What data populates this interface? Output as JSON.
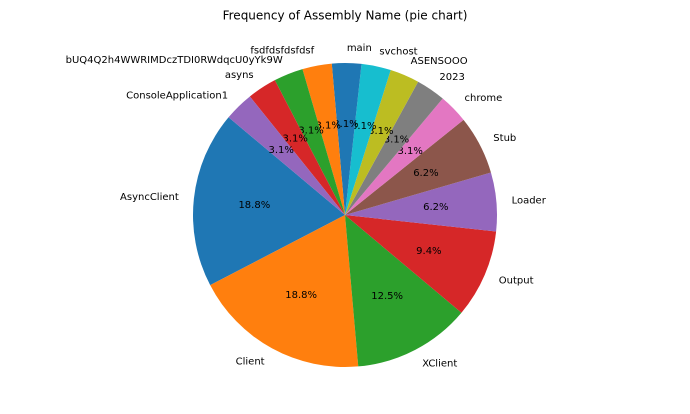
{
  "chart_data": {
    "type": "pie",
    "title": "Frequency of Assembly Name (pie chart)",
    "categories": [
      "AsyncClient",
      "Client",
      "XClient",
      "Output",
      "Loader",
      "Stub",
      "chrome",
      "2023",
      "ASENSOOO",
      "svchost",
      "main",
      "fsdfdsfdsfdsf",
      "bUQ4Q2h4WWRIMDczTDI0RWdqcU0yYk9W",
      "asyns",
      "ConsoleApplication1"
    ],
    "values": [
      18.75,
      18.75,
      12.5,
      9.375,
      6.25,
      6.25,
      3.125,
      3.125,
      3.125,
      3.125,
      3.125,
      3.125,
      3.125,
      3.125,
      3.125
    ],
    "value_labels": [
      "18.8%",
      "18.8%",
      "12.5%",
      "9.4%",
      "6.2%",
      "6.2%",
      "3.1%",
      "3.1%",
      "3.1%",
      "3.1%",
      "3.1%",
      "3.1%",
      "3.1%",
      "3.1%",
      "3.1%"
    ],
    "colors": [
      "#1f77b4",
      "#ff7f0e",
      "#2ca02c",
      "#d62728",
      "#9467bd",
      "#8c564b",
      "#e377c2",
      "#7f7f7f",
      "#bcbd22",
      "#17becf",
      "#1f77b4",
      "#ff7f0e",
      "#2ca02c",
      "#d62728",
      "#9467bd"
    ]
  }
}
